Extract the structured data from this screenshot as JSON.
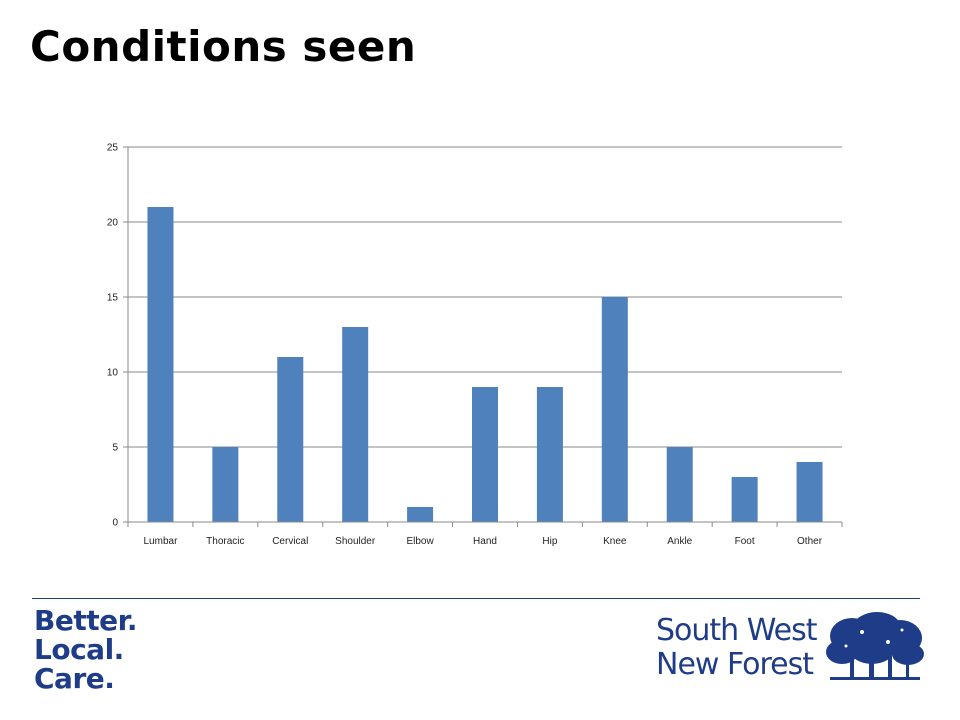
{
  "slide": {
    "title": "Conditions seen"
  },
  "colors": {
    "bar": "#4f81bd",
    "brand": "#1f3c88"
  },
  "footer": {
    "left_logo_lines": [
      "Better.",
      "Local.",
      "Care."
    ],
    "right_logo_lines": [
      "South West",
      "New Forest"
    ],
    "tree_icon": "tree-icon"
  },
  "chart_data": {
    "type": "bar",
    "title": "",
    "xlabel": "",
    "ylabel": "",
    "categories": [
      "Lumbar",
      "Thoracic",
      "Cervical",
      "Shoulder",
      "Elbow",
      "Hand",
      "Hip",
      "Knee",
      "Ankle",
      "Foot",
      "Other"
    ],
    "values": [
      21,
      5,
      11,
      13,
      1,
      9,
      9,
      15,
      5,
      3,
      4
    ],
    "ylim": [
      0,
      25
    ],
    "yticks": [
      0,
      5,
      10,
      15,
      20,
      25
    ],
    "grid": true,
    "legend": "none"
  }
}
